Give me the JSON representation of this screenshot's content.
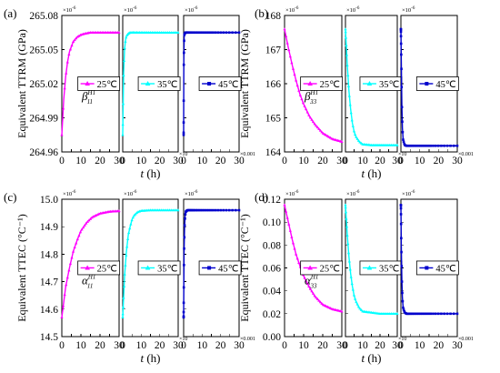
{
  "axis_common": {
    "x_label_italic": "t",
    "x_label_unit": " (h)",
    "x_ticks": [
      "0",
      "5",
      "10",
      "15",
      "20",
      "25",
      "30"
    ],
    "x_offset_labels": [
      "×10",
      "×0.001"
    ],
    "y_exponent_label": "×10",
    "y_exponent_power": "-6"
  },
  "legend_labels": [
    "25℃",
    "35℃",
    "45℃"
  ],
  "colors": {
    "25C": "#ff00ff",
    "35C": "#00ffff",
    "45C": "#0000cc"
  },
  "chart_data": [
    {
      "type": "line",
      "panel_label": "(a)",
      "ylabel": "Equivalent TTRM  (GPa)",
      "ylim": [
        264.96,
        265.08
      ],
      "yticks": [
        "264.96",
        "264.99",
        "265.02",
        "265.05",
        "265.08"
      ],
      "annotation": {
        "base": "β",
        "sub": "11",
        "sup": "H1"
      },
      "series": [
        {
          "name": "25℃",
          "x": [
            0,
            1,
            2,
            3,
            4,
            6,
            8,
            10,
            12,
            15,
            20,
            25,
            30
          ],
          "y": [
            264.975,
            265.006,
            265.026,
            265.039,
            265.048,
            265.057,
            265.061,
            265.063,
            265.064,
            265.065,
            265.065,
            265.065,
            265.065
          ]
        },
        {
          "name": "35℃",
          "x": [
            0,
            0.5,
            1,
            1.5,
            2,
            3,
            4,
            6,
            10,
            20,
            30
          ],
          "y": [
            264.975,
            265.03,
            265.05,
            265.058,
            265.062,
            265.064,
            265.065,
            265.065,
            265.065,
            265.065,
            265.065
          ]
        },
        {
          "name": "45℃",
          "x": [
            0,
            0.1,
            0.3,
            0.5,
            1,
            30
          ],
          "y": [
            264.975,
            265.04,
            265.062,
            265.064,
            265.065,
            265.065
          ]
        }
      ]
    },
    {
      "type": "line",
      "panel_label": "(b)",
      "ylabel": "Equivalent TTRM  (GPa)",
      "ylim": [
        164,
        168
      ],
      "yticks": [
        "164",
        "165",
        "166",
        "167",
        "168"
      ],
      "annotation": {
        "base": "β",
        "sub": "33",
        "sup": "H1"
      },
      "series": [
        {
          "name": "25℃",
          "x": [
            0,
            2,
            4,
            6,
            8,
            10,
            13,
            16,
            20,
            25,
            30
          ],
          "y": [
            167.6,
            167.05,
            166.55,
            166.1,
            165.7,
            165.4,
            165.05,
            164.8,
            164.55,
            164.38,
            164.3
          ]
        },
        {
          "name": "35℃",
          "x": [
            0,
            1,
            2,
            3,
            4,
            5,
            6,
            8,
            10,
            15,
            20,
            30
          ],
          "y": [
            167.6,
            166.6,
            165.8,
            165.25,
            164.85,
            164.6,
            164.45,
            164.3,
            164.22,
            164.2,
            164.2,
            164.2
          ]
        },
        {
          "name": "45℃",
          "x": [
            0,
            0.2,
            0.5,
            0.8,
            1.2,
            2,
            3,
            30
          ],
          "y": [
            167.6,
            166.7,
            165.4,
            164.7,
            164.35,
            164.2,
            164.18,
            164.18
          ]
        }
      ]
    },
    {
      "type": "line",
      "panel_label": "(c)",
      "ylabel": "Equivalent TTEC  (°C⁻¹)",
      "ylim": [
        14.5,
        15.0
      ],
      "yticks": [
        "14.5",
        "14.6",
        "14.7",
        "14.8",
        "14.9",
        "15.0"
      ],
      "annotation": {
        "base": "α",
        "sub": "11",
        "sup": "H1"
      },
      "series": [
        {
          "name": "25℃",
          "x": [
            0,
            2,
            4,
            6,
            8,
            10,
            13,
            16,
            20,
            25,
            30
          ],
          "y": [
            14.57,
            14.68,
            14.75,
            14.81,
            14.85,
            14.885,
            14.915,
            14.935,
            14.948,
            14.955,
            14.957
          ]
        },
        {
          "name": "35℃",
          "x": [
            0,
            1,
            2,
            3,
            4,
            5,
            6,
            8,
            10,
            15,
            20,
            30
          ],
          "y": [
            14.57,
            14.72,
            14.81,
            14.87,
            14.9,
            14.925,
            14.94,
            14.953,
            14.958,
            14.96,
            14.96,
            14.96
          ]
        },
        {
          "name": "45℃",
          "x": [
            0,
            0.2,
            0.5,
            0.8,
            1.2,
            2,
            3,
            30
          ],
          "y": [
            14.57,
            14.8,
            14.9,
            14.94,
            14.955,
            14.96,
            14.96,
            14.96
          ]
        }
      ]
    },
    {
      "type": "line",
      "panel_label": "(d)",
      "ylabel": "Equivalent TTEC  (°C⁻¹)",
      "ylim": [
        0.0,
        0.12
      ],
      "yticks": [
        "0.00",
        "0.02",
        "0.04",
        "0.06",
        "0.08",
        "0.10",
        "0.12"
      ],
      "annotation": {
        "base": "α",
        "sub": "33",
        "sup": "H1"
      },
      "series": [
        {
          "name": "25℃",
          "x": [
            0,
            2,
            4,
            6,
            8,
            10,
            13,
            16,
            20,
            25,
            30
          ],
          "y": [
            0.115,
            0.1,
            0.085,
            0.072,
            0.062,
            0.053,
            0.043,
            0.035,
            0.028,
            0.024,
            0.022
          ]
        },
        {
          "name": "35℃",
          "x": [
            0,
            1,
            2,
            3,
            4,
            5,
            6,
            8,
            10,
            15,
            20,
            30
          ],
          "y": [
            0.115,
            0.09,
            0.07,
            0.055,
            0.044,
            0.036,
            0.031,
            0.025,
            0.022,
            0.021,
            0.02,
            0.02
          ]
        },
        {
          "name": "45℃",
          "x": [
            0,
            0.2,
            0.5,
            0.8,
            1.2,
            2,
            3,
            30
          ],
          "y": [
            0.115,
            0.08,
            0.05,
            0.034,
            0.025,
            0.021,
            0.02,
            0.02
          ]
        }
      ]
    }
  ]
}
